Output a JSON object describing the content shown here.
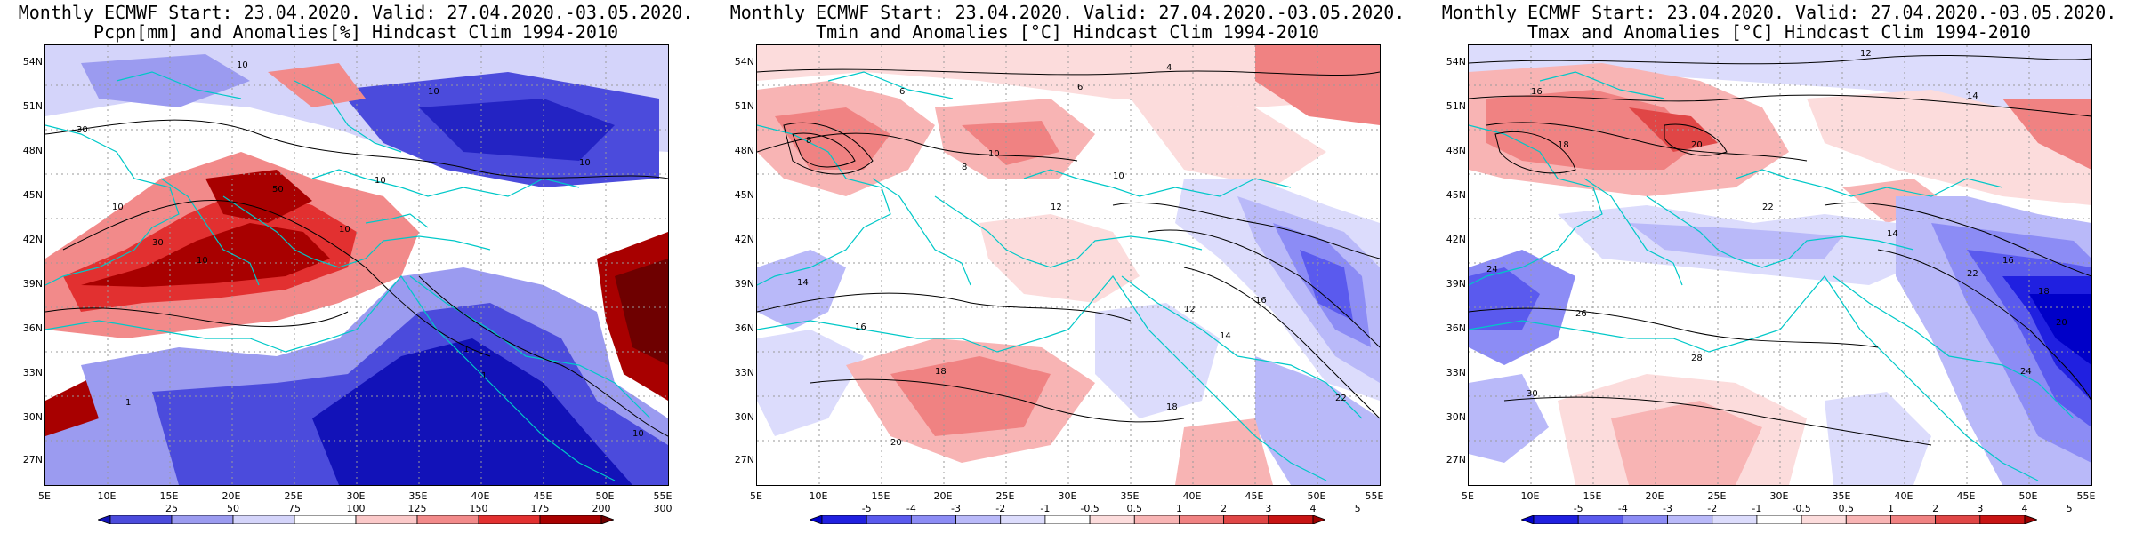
{
  "panels": [
    {
      "title_line1": "Monthly ECMWF Start: 23.04.2020. Valid: 27.04.2020.-03.05.2020.",
      "title_line2": "Pcpn[mm] and Anomalies[%] Hindcast Clim 1994-2010",
      "colorbar_ticks": [
        "25",
        "50",
        "75",
        "100",
        "125",
        "150",
        "175",
        "200",
        "300"
      ],
      "colorbar_colors": [
        "#1212b8",
        "#4b4bdc",
        "#9b9bf0",
        "#d4d4fa",
        "#ffffff",
        "#fbc9c9",
        "#f28a8a",
        "#e23030",
        "#a80000",
        "#6e0000"
      ]
    },
    {
      "title_line1": "Monthly ECMWF Start: 23.04.2020. Valid: 27.04.2020.-03.05.2020.",
      "title_line2": "Tmin and Anomalies [°C] Hindcast Clim 1994-2010",
      "colorbar_ticks": [
        "-5",
        "-4",
        "-3",
        "-2",
        "-1",
        "-0.5",
        "0.5",
        "1",
        "2",
        "3",
        "4",
        "5"
      ],
      "colorbar_colors": [
        "#0000c8",
        "#2020e0",
        "#5a5aee",
        "#8c8cf5",
        "#b9b9f9",
        "#dcdcfc",
        "#ffffff",
        "#fcdcdc",
        "#f8b4b4",
        "#f08282",
        "#e04646",
        "#c81414",
        "#9a0000"
      ]
    },
    {
      "title_line1": "Monthly ECMWF Start: 23.04.2020. Valid: 27.04.2020.-03.05.2020.",
      "title_line2": "Tmax and Anomalies [°C] Hindcast Clim 1994-2010",
      "colorbar_ticks": [
        "-5",
        "-4",
        "-3",
        "-2",
        "-1",
        "-0.5",
        "0.5",
        "1",
        "2",
        "3",
        "4",
        "5"
      ],
      "colorbar_colors": [
        "#0000c8",
        "#2020e0",
        "#5a5aee",
        "#8c8cf5",
        "#b9b9f9",
        "#dcdcfc",
        "#ffffff",
        "#fcdcdc",
        "#f8b4b4",
        "#f08282",
        "#e04646",
        "#c81414",
        "#9a0000"
      ]
    }
  ],
  "lat_labels": [
    "54N",
    "51N",
    "48N",
    "45N",
    "42N",
    "39N",
    "36N",
    "33N",
    "30N",
    "27N"
  ],
  "lon_labels": [
    "5E",
    "10E",
    "15E",
    "20E",
    "25E",
    "30E",
    "35E",
    "40E",
    "45E",
    "50E",
    "55E"
  ],
  "contour_labels": {
    "p1": [
      "10",
      "10",
      "30",
      "30",
      "10",
      "50",
      "10",
      "10",
      "10",
      "10",
      "1",
      "1",
      "10",
      "1"
    ],
    "p2": [
      "4",
      "6",
      "8",
      "10",
      "12",
      "14",
      "16",
      "18",
      "20",
      "22",
      "12",
      "14",
      "16",
      "18",
      "10",
      "8",
      "6"
    ],
    "p3": [
      "12",
      "14",
      "16",
      "18",
      "20",
      "22",
      "24",
      "26",
      "28",
      "30",
      "14",
      "16",
      "18",
      "20",
      "22",
      "24"
    ]
  }
}
